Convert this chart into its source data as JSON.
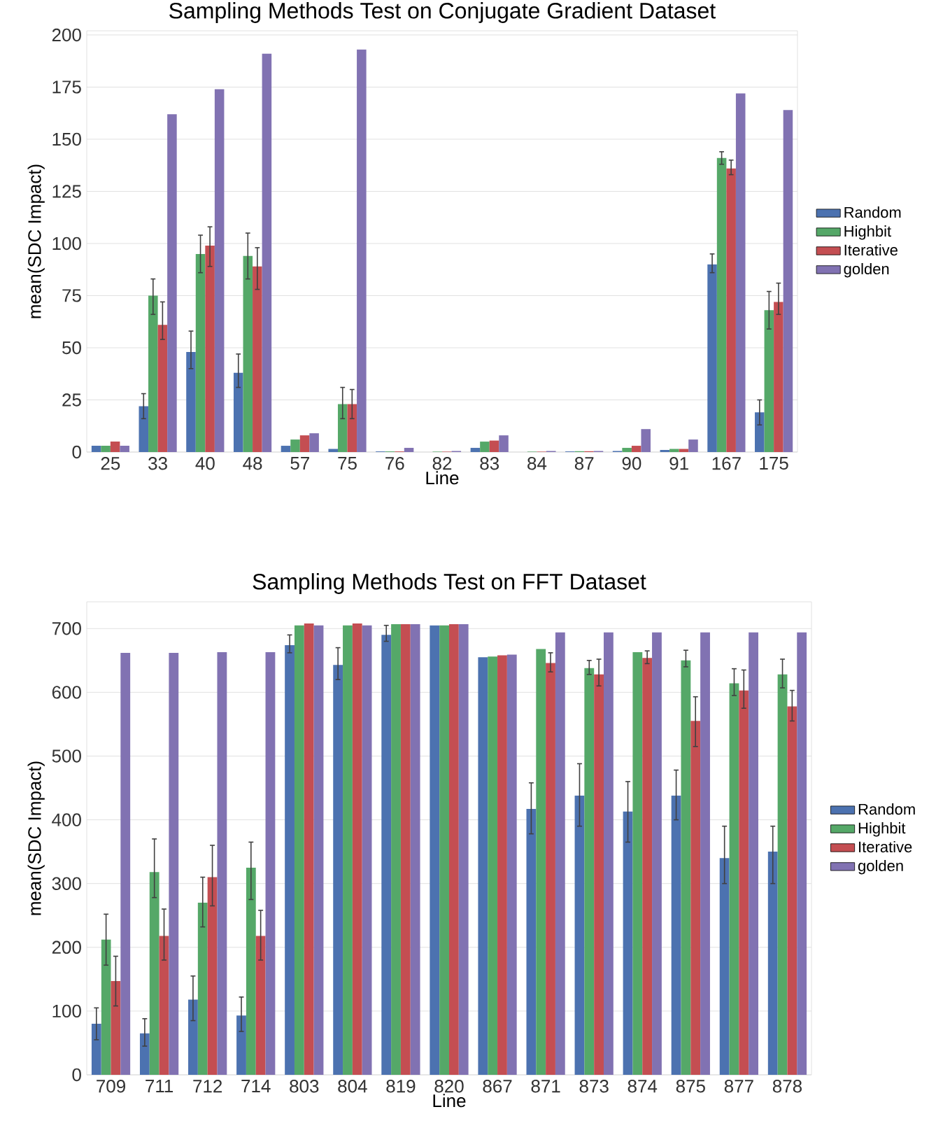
{
  "chart_data": [
    {
      "type": "bar",
      "title": "Sampling Methods Test on Conjugate Gradient Dataset",
      "xlabel": "Line",
      "ylabel": "mean(SDC Impact)",
      "categories": [
        "25",
        "33",
        "40",
        "48",
        "57",
        "75",
        "76",
        "82",
        "83",
        "84",
        "87",
        "90",
        "91",
        "167",
        "175"
      ],
      "ylim": [
        0,
        202
      ],
      "yticks": [
        0,
        25,
        50,
        75,
        100,
        125,
        150,
        175,
        200
      ],
      "grid": "y",
      "legend": "right",
      "series": [
        {
          "name": "Random",
          "color": "#4c72b0",
          "values": [
            3,
            22,
            48,
            38,
            3,
            1.5,
            0.3,
            0,
            2,
            0,
            0.3,
            0.5,
            1,
            90,
            19
          ],
          "errors": [
            null,
            [
              16,
              28
            ],
            [
              40,
              58
            ],
            [
              31,
              47
            ],
            null,
            null,
            null,
            null,
            null,
            null,
            null,
            null,
            null,
            [
              86,
              95
            ],
            [
              13,
              25
            ]
          ]
        },
        {
          "name": "Highbit",
          "color": "#55a868",
          "values": [
            3,
            75,
            95,
            94,
            6,
            23,
            0.3,
            0.2,
            5,
            0.2,
            0.4,
            2,
            1.5,
            141,
            68
          ],
          "errors": [
            null,
            [
              66,
              83
            ],
            [
              86,
              104
            ],
            [
              83,
              105
            ],
            null,
            [
              16,
              31
            ],
            null,
            null,
            null,
            null,
            null,
            null,
            null,
            [
              138,
              144
            ],
            [
              59,
              77
            ]
          ]
        },
        {
          "name": "Iterative",
          "color": "#c44e52",
          "values": [
            5,
            61,
            99,
            89,
            8,
            23,
            0.3,
            0.2,
            5.5,
            0.2,
            0.4,
            3,
            1.5,
            136,
            72
          ],
          "errors": [
            null,
            [
              54,
              72
            ],
            [
              89,
              108
            ],
            [
              78,
              98
            ],
            null,
            [
              16,
              30
            ],
            null,
            null,
            null,
            null,
            null,
            null,
            null,
            [
              133,
              140
            ],
            [
              66,
              81
            ]
          ]
        },
        {
          "name": "golden",
          "color": "#8172b2",
          "values": [
            3,
            162,
            174,
            191,
            9,
            193,
            2,
            0.5,
            8,
            0.5,
            0.5,
            11,
            6,
            172,
            164
          ]
        }
      ]
    },
    {
      "type": "bar",
      "title": "Sampling Methods Test on FFT Dataset",
      "xlabel": "Line",
      "ylabel": "mean(SDC Impact)",
      "categories": [
        "709",
        "711",
        "712",
        "714",
        "803",
        "804",
        "819",
        "820",
        "867",
        "871",
        "873",
        "874",
        "875",
        "877",
        "878"
      ],
      "ylim": [
        0,
        742
      ],
      "yticks": [
        0,
        100,
        200,
        300,
        400,
        500,
        600,
        700
      ],
      "grid": "y",
      "legend": "right",
      "series": [
        {
          "name": "Random",
          "color": "#4c72b0",
          "values": [
            80,
            65,
            118,
            93,
            674,
            643,
            690,
            705,
            655,
            417,
            438,
            413,
            438,
            340,
            350
          ],
          "errors": [
            [
              55,
              105
            ],
            [
              45,
              88
            ],
            [
              85,
              155
            ],
            [
              68,
              122
            ],
            [
              662,
              690
            ],
            [
              620,
              670
            ],
            [
              680,
              705
            ],
            null,
            null,
            [
              378,
              458
            ],
            [
              390,
              488
            ],
            [
              365,
              460
            ],
            [
              400,
              478
            ],
            [
              300,
              390
            ],
            [
              300,
              390
            ]
          ]
        },
        {
          "name": "Highbit",
          "color": "#55a868",
          "values": [
            212,
            318,
            270,
            325,
            705,
            705,
            707,
            705,
            656,
            668,
            638,
            663,
            650,
            614,
            628
          ],
          "errors": [
            [
              172,
              252
            ],
            [
              278,
              370
            ],
            [
              232,
              310
            ],
            [
              275,
              365
            ],
            null,
            null,
            null,
            null,
            null,
            null,
            [
              628,
              650
            ],
            null,
            [
              640,
              666
            ],
            [
              595,
              637
            ],
            [
              607,
              652
            ]
          ]
        },
        {
          "name": "Iterative",
          "color": "#c44e52",
          "values": [
            147,
            218,
            310,
            218,
            708,
            708,
            707,
            707,
            658,
            646,
            628,
            654,
            555,
            603,
            578
          ],
          "errors": [
            [
              108,
              186
            ],
            [
              180,
              260
            ],
            [
              265,
              360
            ],
            [
              180,
              258
            ],
            null,
            null,
            null,
            null,
            null,
            [
              632,
              662
            ],
            [
              610,
              652
            ],
            [
              645,
              665
            ],
            [
              515,
              593
            ],
            [
              575,
              635
            ],
            [
              555,
              603
            ]
          ]
        },
        {
          "name": "golden",
          "color": "#8172b2",
          "values": [
            662,
            662,
            663,
            663,
            705,
            705,
            707,
            707,
            659,
            694,
            694,
            694,
            694,
            694,
            694
          ]
        }
      ]
    }
  ]
}
